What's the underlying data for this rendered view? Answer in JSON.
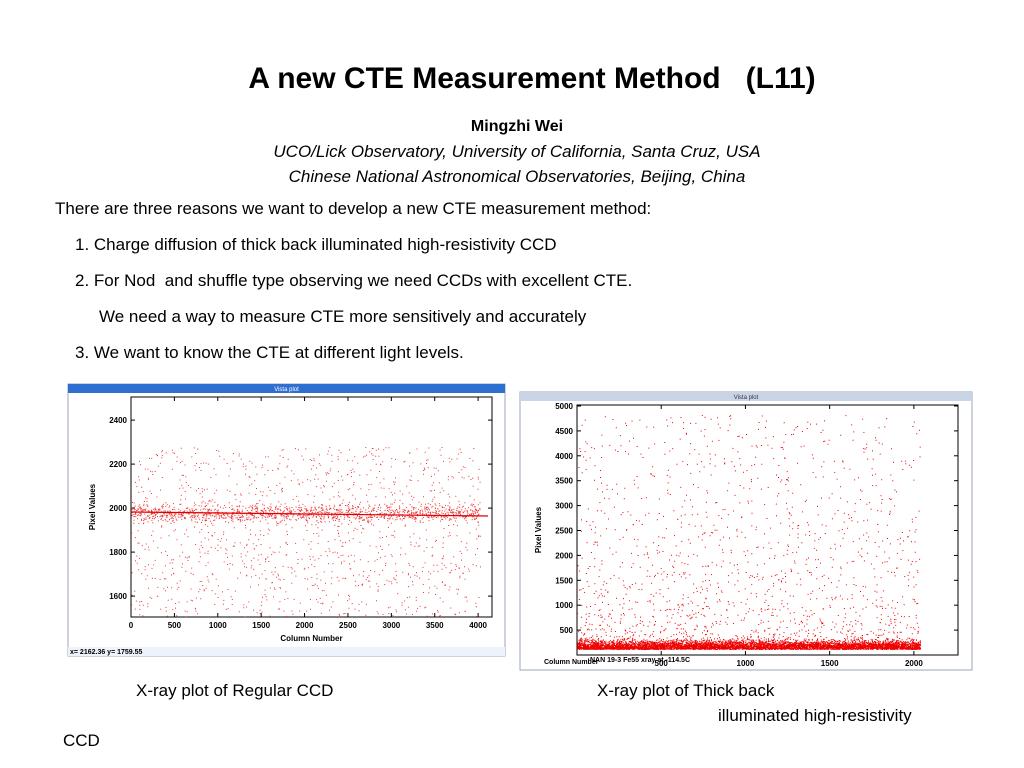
{
  "title": "A new CTE Measurement Method   (L11)",
  "author": "Mingzhi Wei",
  "affiliations": [
    "UCO/Lick Observatory, University of California, Santa Cruz, USA",
    "Chinese National Astronomical Observatories, Beijing, China"
  ],
  "intro": "There are three reasons we want to develop a new CTE measurement method:",
  "items": [
    "1. Charge diffusion of thick back illuminated high-resistivity CCD",
    "2. For Nod  and shuffle type observing we need CCDs with excellent CTE.",
    "We need a way to measure CTE more sensitively and accurately",
    "3. We want to know the CTE at different light levels."
  ],
  "plots": [
    {
      "window_title": "Vista plot",
      "y_label": "Pixel Values",
      "x_label": "Column Number",
      "xlim": [
        0,
        4160
      ],
      "xticks": [
        0,
        500,
        1000,
        1500,
        2000,
        2500,
        3000,
        3500,
        4000
      ],
      "ylim": [
        1505,
        2505
      ],
      "yticks": [
        1600,
        1800,
        2000,
        2200,
        2400
      ],
      "status": "x=    2162.36 y=     1759.55",
      "caption": [
        "X-ray plot of Regular CCD"
      ]
    },
    {
      "window_title": "Vista plot",
      "y_label": "Pixel Values",
      "x_label": "Column Number",
      "xlim": [
        0,
        2262
      ],
      "xticks": [
        500,
        1000,
        1500,
        2000
      ],
      "ylim": [
        0,
        5020
      ],
      "yticks": [
        500,
        1000,
        1500,
        2000,
        2500,
        3000,
        3500,
        4000,
        4500,
        5000
      ],
      "note": "NAN 19-3 Fe55 xray at -114.5C",
      "caption": [
        "X-ray plot of Thick back",
        "illuminated high-resistivity",
        "CCD"
      ]
    }
  ]
}
